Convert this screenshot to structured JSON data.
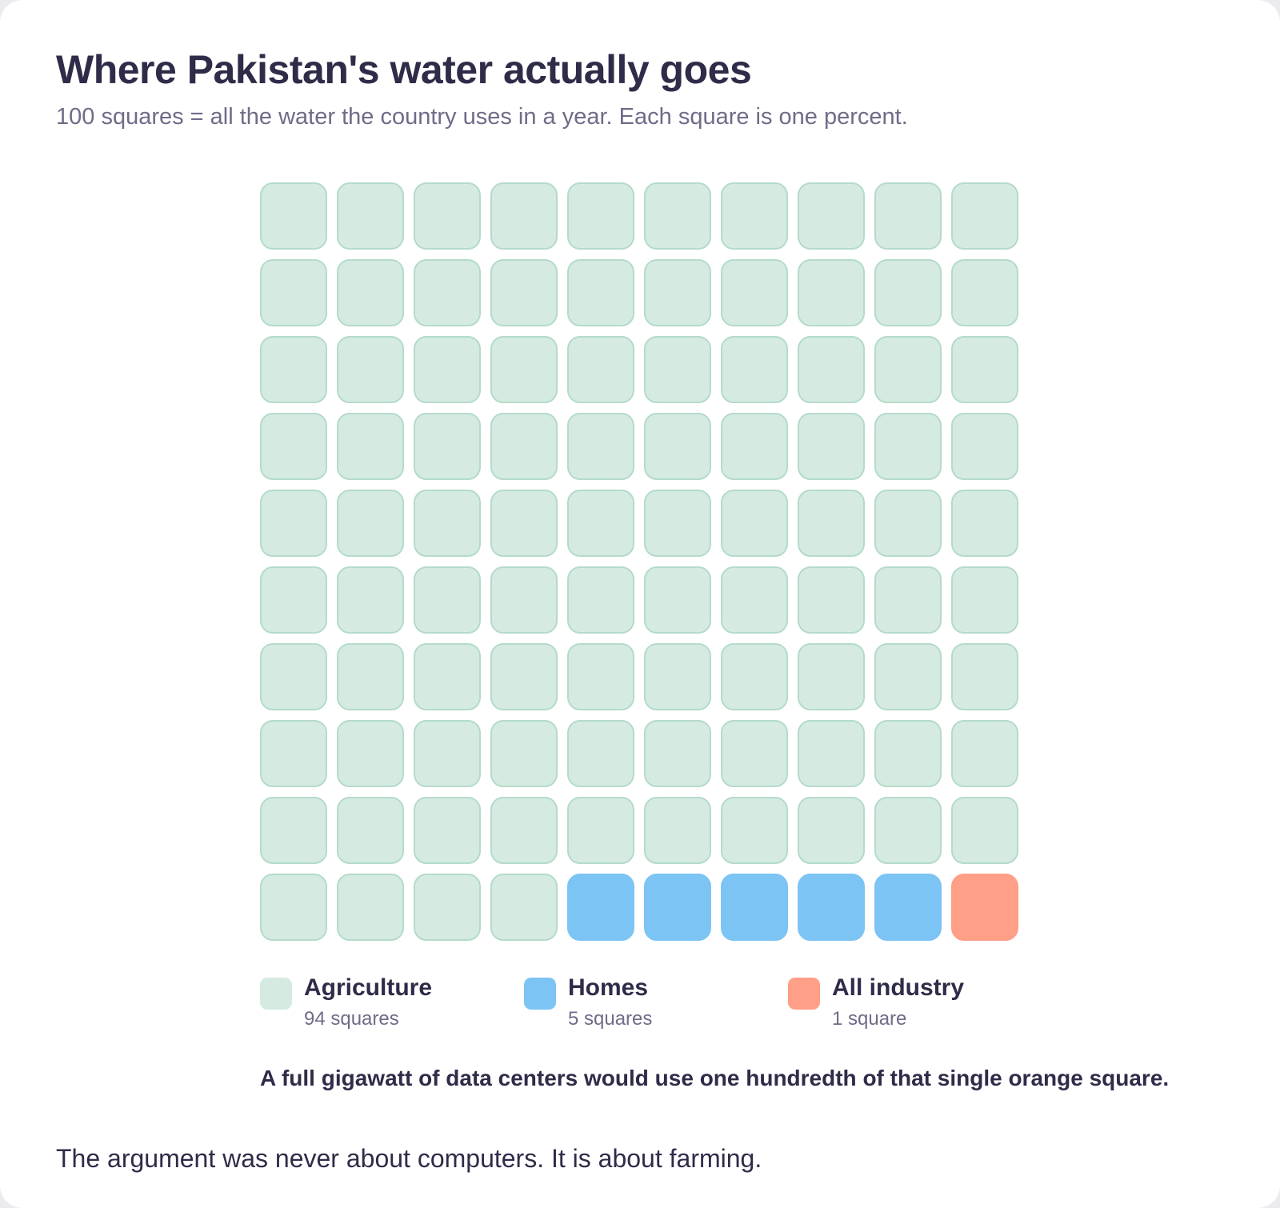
{
  "header": {
    "title": "Where Pakistan's water actually goes",
    "subtitle": "100 squares = all the water the country uses in a year. Each square is one percent."
  },
  "chart_data": {
    "type": "waffle",
    "grid_rows": 10,
    "grid_cols": 10,
    "total": 100,
    "categories": [
      {
        "name": "Agriculture",
        "value": 94,
        "fill": "#d5ebe1",
        "border": "#b4dbc9"
      },
      {
        "name": "Homes",
        "value": 5,
        "fill": "#7cc4f4",
        "border": "#7cc4f4"
      },
      {
        "name": "All industry",
        "value": 1,
        "fill": "#ff9f87",
        "border": "#ff9f87"
      }
    ]
  },
  "legend": {
    "items": [
      {
        "label": "Agriculture",
        "sub": "94 squares",
        "color": "#d5ebe1"
      },
      {
        "label": "Homes",
        "sub": "5 squares",
        "color": "#7cc4f4"
      },
      {
        "label": "All industry",
        "sub": "1 square",
        "color": "#ff9f87"
      }
    ]
  },
  "note": "A full gigawatt of data centers would use one hundredth of that single orange square.",
  "footer": "The argument was never about computers. It is about farming."
}
